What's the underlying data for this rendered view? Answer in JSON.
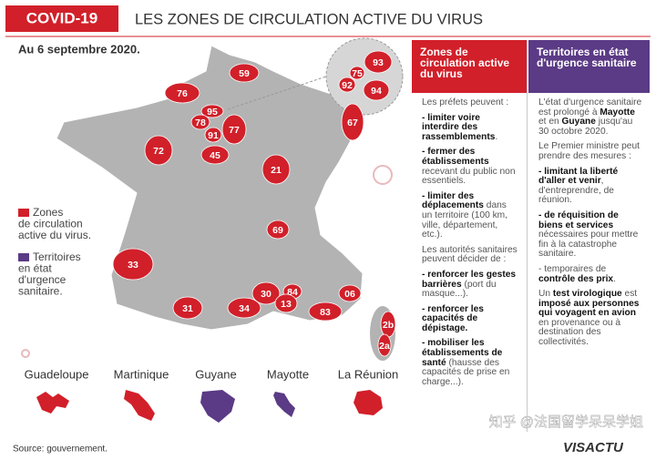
{
  "header": {
    "badge": "COVID-19",
    "title": "LES ZONES DE CIRCULATION ACTIVE DU VIRUS"
  },
  "date": "Au 6 septembre 2020.",
  "departments": [
    "59",
    "76",
    "93",
    "75",
    "92",
    "94",
    "95",
    "78",
    "91",
    "77",
    "67",
    "72",
    "45",
    "21",
    "69",
    "33",
    "30",
    "84",
    "13",
    "06",
    "83",
    "34",
    "31",
    "2b",
    "2a"
  ],
  "legend": [
    {
      "label": [
        "Zones",
        "de circulation",
        "active du virus."
      ]
    },
    {
      "label": [
        "Territoires",
        "en état",
        "d'urgence",
        "sanitaire."
      ]
    }
  ],
  "overseas": [
    {
      "name": "Guadeloupe",
      "zone": "circulation"
    },
    {
      "name": "Martinique",
      "zone": "circulation"
    },
    {
      "name": "Guyane",
      "zone": "urgence"
    },
    {
      "name": "Mayotte",
      "zone": "urgence"
    },
    {
      "name": "La Réunion",
      "zone": "circulation"
    }
  ],
  "panels": [
    {
      "title": "Zones de circulation active du virus",
      "blocks": [
        [
          {
            "text": "Les préfets peuvent :"
          }
        ],
        [
          {
            "text": "- limiter voire interdire des rassemblements",
            "bold": true
          },
          {
            "text": "."
          }
        ],
        [
          {
            "text": "- fermer des établissements",
            "bold": true
          },
          {
            "text": " recevant du public non essentiels."
          }
        ],
        [
          {
            "text": "- limiter des déplacements",
            "bold": true
          },
          {
            "text": " dans un territoire (100 km, ville, département, etc.)."
          }
        ],
        [
          {
            "text": "Les autorités sanitaires peuvent décider de :"
          }
        ],
        [
          {
            "text": "- renforcer les gestes barrières",
            "bold": true
          },
          {
            "text": " (port du masque...)."
          }
        ],
        [
          {
            "text": "- renforcer les capacités de dépistage.",
            "bold": true
          }
        ],
        [
          {
            "text": "- mobiliser les établissements de santé",
            "bold": true
          },
          {
            "text": " (hausse des capacités de prise en charge...)."
          }
        ]
      ]
    },
    {
      "title": "Territoires en état d'urgence sanitaire",
      "blocks": [
        [
          {
            "text": "L'état d'urgence sanitaire est prolongé à "
          },
          {
            "text": "Mayotte",
            "bold": true
          },
          {
            "text": " et en "
          },
          {
            "text": "Guyane",
            "bold": true
          },
          {
            "text": " jusqu'au 30 octobre 2020."
          }
        ],
        [
          {
            "text": "Le Premier ministre peut prendre des mesures :"
          }
        ],
        [
          {
            "text": "- limitant la liberté d'aller et venir",
            "bold": true
          },
          {
            "text": ", d'entreprendre, de réunion."
          }
        ],
        [
          {
            "text": "- de réquisition de biens et services",
            "bold": true
          },
          {
            "text": " nécessaires pour mettre fin à la catastrophe sanitaire."
          }
        ],
        [
          {
            "text": "- temporaires de "
          },
          {
            "text": "contrôle des prix",
            "bold": true
          },
          {
            "text": "."
          }
        ],
        [
          {
            "text": "Un "
          },
          {
            "text": "test virologique",
            "bold": true
          },
          {
            "text": " est "
          },
          {
            "text": "imposé aux personnes qui voyagent en avion",
            "bold": true
          },
          {
            "text": " en provenance ou à destination des collectivités."
          }
        ]
      ]
    }
  ],
  "watermark": "知乎 @法国留学呆呆学姐",
  "logo": "VISACTU",
  "source": "Source: gouvernement."
}
